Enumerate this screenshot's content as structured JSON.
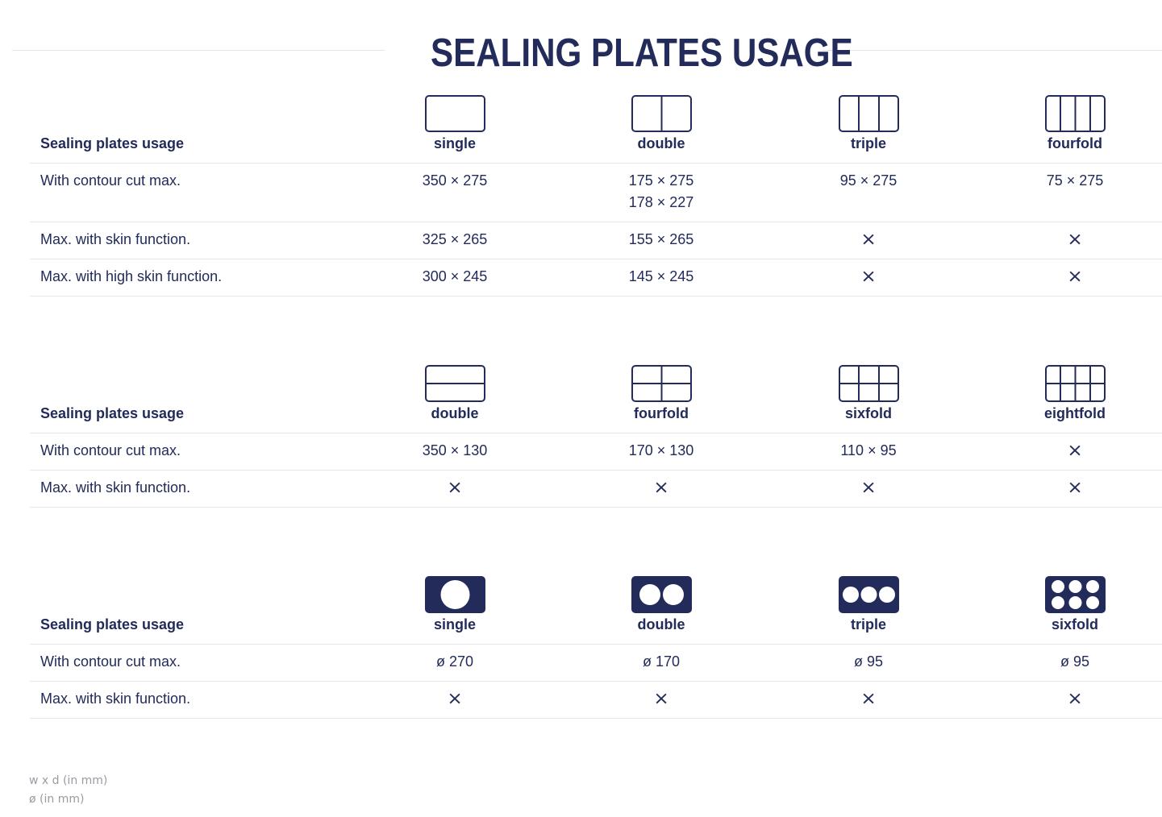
{
  "title": "SEALING PLATES USAGE",
  "colors": {
    "primary": "#222b5a",
    "divider": "#e6e7eb",
    "footnote": "#9a9ba3"
  },
  "sections": [
    {
      "header_label": "Sealing plates usage",
      "columns": [
        {
          "name": "single",
          "icon": "plate-single-icon"
        },
        {
          "name": "double",
          "icon": "plate-double-vertical-icon"
        },
        {
          "name": "triple",
          "icon": "plate-triple-vertical-icon"
        },
        {
          "name": "fourfold",
          "icon": "plate-fourfold-vertical-icon"
        }
      ],
      "rows": [
        {
          "label": "With contour cut max.",
          "values": [
            [
              "350 × 275"
            ],
            [
              "175 × 275",
              "178 × 227"
            ],
            [
              "95 × 275"
            ],
            [
              "75 × 275"
            ]
          ]
        },
        {
          "label": "Max. with skin function.",
          "values": [
            [
              "325 × 265"
            ],
            [
              "155 × 265"
            ],
            [
              "×"
            ],
            [
              "×"
            ]
          ]
        },
        {
          "label": "Max. with high skin function.",
          "values": [
            [
              "300 × 245"
            ],
            [
              "145 × 245"
            ],
            [
              "×"
            ],
            [
              "×"
            ]
          ]
        }
      ]
    },
    {
      "header_label": "Sealing plates usage",
      "columns": [
        {
          "name": "double",
          "icon": "plate-double-horizontal-icon"
        },
        {
          "name": "fourfold",
          "icon": "plate-fourfold-grid-icon"
        },
        {
          "name": "sixfold",
          "icon": "plate-sixfold-grid-icon"
        },
        {
          "name": "eightfold",
          "icon": "plate-eightfold-grid-icon"
        }
      ],
      "rows": [
        {
          "label": "With contour cut max.",
          "values": [
            [
              "350 × 130"
            ],
            [
              "170 × 130"
            ],
            [
              "110 × 95"
            ],
            [
              "×"
            ]
          ]
        },
        {
          "label": "Max. with skin function.",
          "values": [
            [
              "×"
            ],
            [
              "×"
            ],
            [
              "×"
            ],
            [
              "×"
            ]
          ]
        }
      ]
    },
    {
      "header_label": "Sealing plates usage",
      "columns": [
        {
          "name": "single",
          "icon": "round-single-icon"
        },
        {
          "name": "double",
          "icon": "round-double-icon"
        },
        {
          "name": "triple",
          "icon": "round-triple-icon"
        },
        {
          "name": "sixfold",
          "icon": "round-sixfold-icon"
        }
      ],
      "rows": [
        {
          "label": "With contour cut max.",
          "values": [
            [
              "ø 270"
            ],
            [
              "ø 170"
            ],
            [
              "ø 95"
            ],
            [
              "ø 95"
            ]
          ]
        },
        {
          "label": "Max. with skin function.",
          "values": [
            [
              "×"
            ],
            [
              "×"
            ],
            [
              "×"
            ],
            [
              "×"
            ]
          ]
        }
      ]
    }
  ],
  "footnotes": [
    "w x d (in mm)",
    "ø (in mm)"
  ]
}
